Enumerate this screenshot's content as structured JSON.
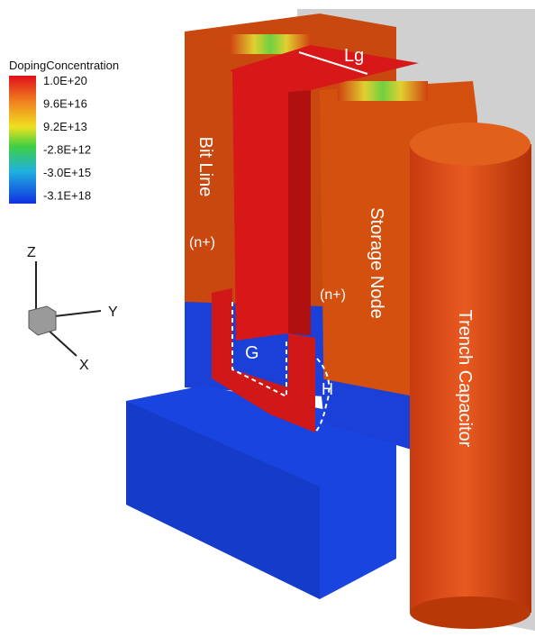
{
  "legend": {
    "title": "DopingConcentration",
    "labels": [
      "1.0E+20",
      "9.6E+16",
      "9.2E+13",
      "-2.8E+12",
      "-3.0E+15",
      "-3.1E+18"
    ]
  },
  "axes": {
    "z": "Z",
    "y": "Y",
    "x": "X"
  },
  "labels": {
    "lg": "Lg",
    "bit_line": "Bit Line",
    "n_left": "(n+)",
    "storage_node": "Storage Node",
    "n_right": "(n+)",
    "trench_capacitor": "Trench Capacitor",
    "g": "G",
    "h": "H"
  }
}
